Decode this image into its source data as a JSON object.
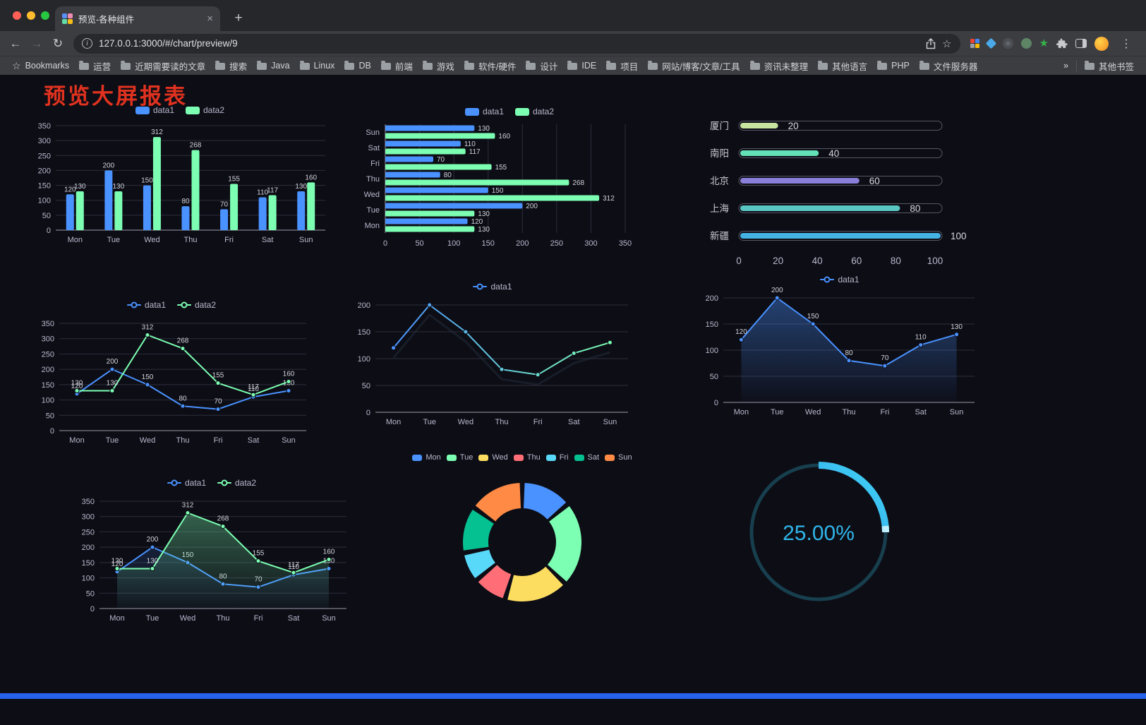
{
  "browser": {
    "tab": {
      "title": "预览-各种组件"
    },
    "address": {
      "url": "127.0.0.1:3000/#/chart/preview/9"
    },
    "bookmarks_label": "Bookmarks",
    "bookmarks": [
      "运营",
      "近期需要读的文章",
      "搜索",
      "Java",
      "Linux",
      "DB",
      "前端",
      "游戏",
      "软件/硬件",
      "设计",
      "IDE",
      "项目",
      "网站/博客/文章/工具",
      "资讯未整理",
      "其他语言",
      "PHP",
      "文件服务器"
    ],
    "bookmarks_overflow": "»",
    "other_bookmarks": "其他书签"
  },
  "page": {
    "title": "预览大屏报表",
    "title_color": "#e0321f",
    "footer_color": "#2563eb"
  },
  "colors": {
    "series_blue": "#4992ff",
    "series_green": "#7cffb2",
    "axis_text": "#b9b8ce",
    "page_bg": "#0d0d15",
    "gauge_cyan": "#2fb6ea"
  },
  "chart_data": [
    {
      "id": "grouped-bar",
      "type": "bar",
      "categories": [
        "Mon",
        "Tue",
        "Wed",
        "Thu",
        "Fri",
        "Sat",
        "Sun"
      ],
      "series": [
        {
          "name": "data1",
          "color": "#4992ff",
          "values": [
            120,
            200,
            150,
            80,
            70,
            110,
            130
          ]
        },
        {
          "name": "data2",
          "color": "#7cffb2",
          "values": [
            130,
            130,
            312,
            268,
            155,
            117,
            160
          ]
        }
      ],
      "ylim": [
        0,
        350
      ],
      "ystep": 50,
      "labels": true
    },
    {
      "id": "grouped-hbar",
      "type": "hbar",
      "categories": [
        "Mon",
        "Tue",
        "Wed",
        "Thu",
        "Fri",
        "Sat",
        "Sun"
      ],
      "series": [
        {
          "name": "data1",
          "color": "#4992ff",
          "values": [
            120,
            200,
            150,
            80,
            70,
            110,
            130
          ]
        },
        {
          "name": "data2",
          "color": "#7cffb2",
          "values": [
            130,
            130,
            312,
            268,
            155,
            117,
            160
          ]
        }
      ],
      "xlim": [
        0,
        350
      ],
      "xstep": 50,
      "labels": true
    },
    {
      "id": "progress-bars",
      "type": "progress",
      "max": 100,
      "xticks": [
        0,
        20,
        40,
        60,
        80,
        100
      ],
      "rows": [
        {
          "label": "厦门",
          "value": 20,
          "color": "#c7e59f"
        },
        {
          "label": "南阳",
          "value": 40,
          "color": "#63e2b7"
        },
        {
          "label": "北京",
          "value": 60,
          "color": "#8a7fd8"
        },
        {
          "label": "上海",
          "value": 80,
          "color": "#5ac6c2"
        },
        {
          "label": "新疆",
          "value": 100,
          "color": "#44b2e3"
        }
      ]
    },
    {
      "id": "line-two-series",
      "type": "line",
      "categories": [
        "Mon",
        "Tue",
        "Wed",
        "Thu",
        "Fri",
        "Sat",
        "Sun"
      ],
      "series": [
        {
          "name": "data1",
          "color": "#4992ff",
          "values": [
            120,
            200,
            150,
            80,
            70,
            110,
            130
          ]
        },
        {
          "name": "data2",
          "color": "#7cffb2",
          "values": [
            130,
            130,
            312,
            268,
            155,
            117,
            160
          ]
        }
      ],
      "ylim": [
        0,
        350
      ],
      "ystep": 50,
      "labels": true
    },
    {
      "id": "line-gradient",
      "type": "line",
      "categories": [
        "Mon",
        "Tue",
        "Wed",
        "Thu",
        "Fri",
        "Sat",
        "Sun"
      ],
      "series": [
        {
          "name": "data1",
          "color": "#4992ff",
          "gradient": [
            "#4992ff",
            "#7cffb2"
          ],
          "values": [
            120,
            200,
            150,
            80,
            70,
            110,
            130
          ]
        }
      ],
      "ylim": [
        0,
        200
      ],
      "ystep": 50,
      "labels": false
    },
    {
      "id": "line-area",
      "type": "line",
      "categories": [
        "Mon",
        "Tue",
        "Wed",
        "Thu",
        "Fri",
        "Sat",
        "Sun"
      ],
      "series": [
        {
          "name": "data1",
          "color": "#4992ff",
          "area": true,
          "area_opacity": 0.4,
          "values": [
            120,
            200,
            150,
            80,
            70,
            110,
            130
          ]
        }
      ],
      "ylim": [
        0,
        200
      ],
      "ystep": 50,
      "labels": true
    },
    {
      "id": "line-two-area",
      "type": "line",
      "categories": [
        "Mon",
        "Tue",
        "Wed",
        "Thu",
        "Fri",
        "Sat",
        "Sun"
      ],
      "series": [
        {
          "name": "data1",
          "color": "#4992ff",
          "area": true,
          "area_opacity": 0.15,
          "values": [
            120,
            200,
            150,
            80,
            70,
            110,
            130
          ]
        },
        {
          "name": "data2",
          "color": "#7cffb2",
          "area": true,
          "area_opacity": 0.35,
          "values": [
            130,
            130,
            312,
            268,
            155,
            117,
            160
          ]
        }
      ],
      "ylim": [
        0,
        350
      ],
      "ystep": 50,
      "labels": true
    },
    {
      "id": "donut",
      "type": "donut",
      "categories": [
        "Mon",
        "Tue",
        "Wed",
        "Thu",
        "Fri",
        "Sat",
        "Sun"
      ],
      "values": [
        120,
        200,
        150,
        80,
        70,
        110,
        130
      ],
      "colors": [
        "#4992ff",
        "#7cffb2",
        "#fddd60",
        "#ff6e76",
        "#58d9f9",
        "#05c091",
        "#ff8a45"
      ]
    },
    {
      "id": "gauge",
      "type": "gauge",
      "value": 25,
      "label": "25.00%",
      "color": "#2fb6ea"
    }
  ]
}
